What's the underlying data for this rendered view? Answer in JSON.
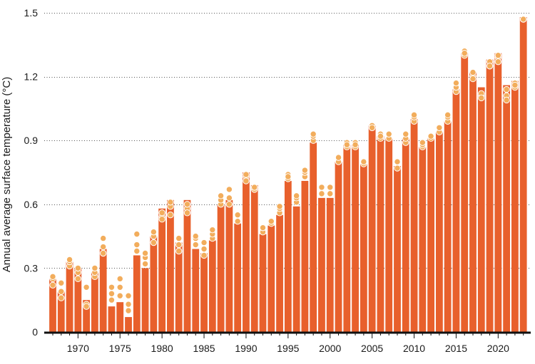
{
  "chart_data": {
    "type": "bar",
    "title": "",
    "xlabel": "",
    "ylabel": "Annual average surface temperature (°C)",
    "ylim": [
      0,
      1.5
    ],
    "yticks": [
      0,
      0.3,
      0.6,
      0.9,
      1.2,
      1.5
    ],
    "ytick_labels": [
      "0",
      "0.3",
      "0.6",
      "0.9",
      "1.2",
      "1.5"
    ],
    "xticks": [
      1970,
      1975,
      1980,
      1985,
      1990,
      1995,
      2000,
      2005,
      2010,
      2015,
      2020
    ],
    "xtick_labels": [
      "1970",
      "1975",
      "1980",
      "1985",
      "1990",
      "1995",
      "2000",
      "2005",
      "2010",
      "2015",
      "2020"
    ],
    "grid": "horizontal-dotted",
    "colors": {
      "bar": "#e8602c",
      "dot": "#f2ad5c",
      "dot_outline": "#ffffff",
      "axis": "#111111"
    },
    "categories": [
      1967,
      1968,
      1969,
      1970,
      1971,
      1972,
      1973,
      1974,
      1975,
      1976,
      1977,
      1978,
      1979,
      1980,
      1981,
      1982,
      1983,
      1984,
      1985,
      1986,
      1987,
      1988,
      1989,
      1990,
      1991,
      1992,
      1993,
      1994,
      1995,
      1996,
      1997,
      1998,
      1999,
      2000,
      2001,
      2002,
      2003,
      2004,
      2005,
      2006,
      2007,
      2008,
      2009,
      2010,
      2011,
      2012,
      2013,
      2014,
      2015,
      2016,
      2017,
      2018,
      2019,
      2020,
      2021,
      2022,
      2023
    ],
    "values": [
      0.25,
      0.19,
      0.33,
      0.3,
      0.15,
      0.28,
      0.39,
      0.12,
      0.14,
      0.07,
      0.36,
      0.3,
      0.45,
      0.58,
      0.62,
      0.42,
      0.62,
      0.39,
      0.37,
      0.43,
      0.6,
      0.62,
      0.51,
      0.75,
      0.69,
      0.46,
      0.5,
      0.55,
      0.71,
      0.59,
      0.71,
      0.89,
      0.63,
      0.63,
      0.8,
      0.88,
      0.88,
      0.79,
      0.97,
      0.92,
      0.91,
      0.78,
      0.91,
      1.0,
      0.87,
      0.91,
      0.94,
      0.99,
      1.14,
      1.31,
      1.22,
      1.15,
      1.28,
      1.31,
      1.16,
      1.18,
      1.48
    ],
    "series": [
      {
        "name": "",
        "values": [
          0.22,
          0.16,
          0.31,
          0.28,
          0.13,
          0.26,
          0.37,
          0.15,
          0.17,
          0.1,
          0.38,
          0.32,
          0.42,
          0.54,
          0.59,
          0.38,
          0.58,
          0.41,
          0.36,
          0.44,
          0.6,
          0.6,
          0.52,
          0.73,
          0.67,
          0.47,
          0.51,
          0.56,
          0.72,
          0.61,
          0.73,
          0.9,
          0.65,
          0.65,
          0.8,
          0.87,
          0.87,
          0.79,
          0.96,
          0.91,
          0.91,
          0.77,
          0.89,
          0.99,
          0.87,
          0.91,
          0.94,
          0.99,
          1.13,
          1.3,
          1.2,
          1.11,
          1.25,
          1.29,
          1.11,
          1.15,
          1.47
        ]
      },
      {
        "name": "",
        "values": [
          0.25,
          0.19,
          0.33,
          0.3,
          0.12,
          0.28,
          0.4,
          0.18,
          0.21,
          0.13,
          0.41,
          0.35,
          0.45,
          0.56,
          0.61,
          0.41,
          0.6,
          0.44,
          0.39,
          0.46,
          0.62,
          0.63,
          0.55,
          0.74,
          0.68,
          0.49,
          0.52,
          0.58,
          0.74,
          0.63,
          0.75,
          0.92,
          0.68,
          0.68,
          0.82,
          0.89,
          0.89,
          0.8,
          0.97,
          0.93,
          0.93,
          0.8,
          0.91,
          1.01,
          0.88,
          0.92,
          0.96,
          1.01,
          1.15,
          1.32,
          1.22,
          1.12,
          1.27,
          1.3,
          1.14,
          1.17,
          1.47
        ]
      },
      {
        "name": "",
        "values": [
          0.26,
          0.23,
          0.34,
          0.25,
          0.21,
          0.3,
          0.44,
          0.21,
          0.25,
          0.17,
          0.46,
          0.37,
          0.47,
          0.53,
          0.55,
          0.44,
          0.56,
          0.45,
          0.42,
          0.48,
          0.64,
          0.67,
          0.55,
          0.71,
          0.68,
          0.49,
          0.52,
          0.59,
          0.73,
          0.64,
          0.76,
          0.93,
          0.68,
          0.68,
          0.82,
          0.88,
          0.88,
          0.8,
          0.96,
          0.92,
          0.93,
          0.8,
          0.93,
          1.02,
          0.89,
          0.92,
          0.96,
          1.02,
          1.17,
          1.31,
          1.19,
          1.1,
          1.25,
          1.27,
          1.09,
          1.16,
          1.47
        ]
      }
    ]
  }
}
